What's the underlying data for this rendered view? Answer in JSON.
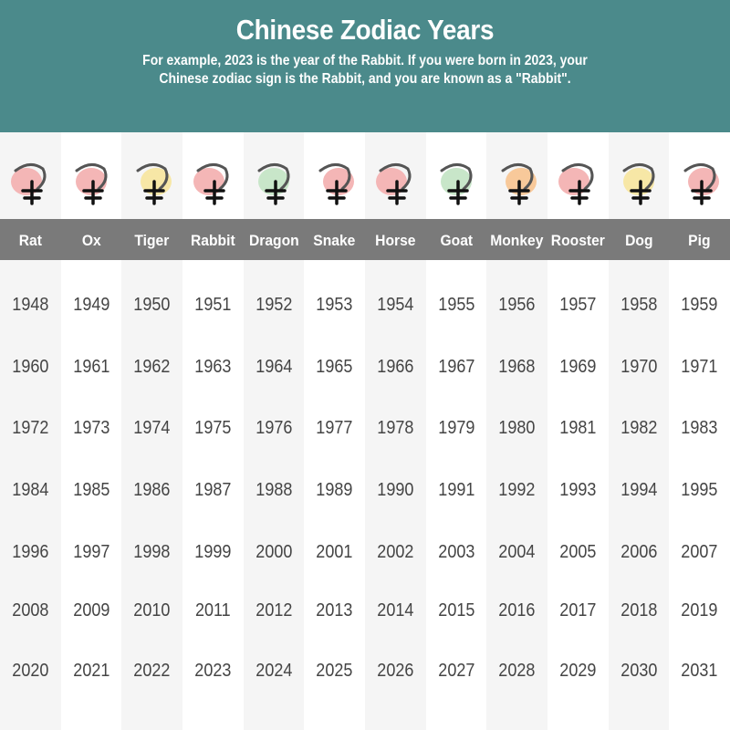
{
  "header": {
    "title": "Chinese Zodiac Years",
    "subtitle_line1": "For example, 2023 is the year of the Rabbit. If you were born in 2023, your",
    "subtitle_line2": "Chinese zodiac sign is the Rabbit, and you are known as a \"Rabbit\"."
  },
  "colors": {
    "banner": "#4b8a8b",
    "band": "#7a7a7a"
  },
  "signs": [
    {
      "name": "Rat",
      "icon": "rat-icon",
      "blob": "#f4b6b6",
      "years": [
        1948,
        1960,
        1972,
        1984,
        1996,
        2008,
        2020
      ]
    },
    {
      "name": "Ox",
      "icon": "ox-icon",
      "blob": "#f4b6b6",
      "years": [
        1949,
        1961,
        1973,
        1985,
        1997,
        2009,
        2021
      ]
    },
    {
      "name": "Tiger",
      "icon": "tiger-icon",
      "blob": "#f7e7a6",
      "years": [
        1950,
        1962,
        1974,
        1986,
        1998,
        2010,
        2022
      ]
    },
    {
      "name": "Rabbit",
      "icon": "rabbit-icon",
      "blob": "#f4b6b6",
      "years": [
        1951,
        1963,
        1975,
        1987,
        1999,
        2011,
        2023
      ]
    },
    {
      "name": "Dragon",
      "icon": "dragon-icon",
      "blob": "#c8e6c9",
      "years": [
        1952,
        1964,
        1976,
        1988,
        2000,
        2012,
        2024
      ]
    },
    {
      "name": "Snake",
      "icon": "snake-icon",
      "blob": "#f4b6b6",
      "years": [
        1953,
        1965,
        1977,
        1989,
        2001,
        2013,
        2025
      ]
    },
    {
      "name": "Horse",
      "icon": "horse-icon",
      "blob": "#f4b6b6",
      "years": [
        1954,
        1966,
        1978,
        1990,
        2002,
        2014,
        2026
      ]
    },
    {
      "name": "Goat",
      "icon": "goat-icon",
      "blob": "#c8e6c9",
      "years": [
        1955,
        1967,
        1979,
        1991,
        2003,
        2015,
        2027
      ]
    },
    {
      "name": "Monkey",
      "icon": "monkey-icon",
      "blob": "#f8c99a",
      "years": [
        1956,
        1968,
        1980,
        1992,
        2004,
        2016,
        2028
      ]
    },
    {
      "name": "Rooster",
      "icon": "rooster-icon",
      "blob": "#f4b6b6",
      "years": [
        1957,
        1969,
        1981,
        1993,
        2005,
        2017,
        2029
      ]
    },
    {
      "name": "Dog",
      "icon": "dog-icon",
      "blob": "#f7e7a6",
      "years": [
        1958,
        1970,
        1982,
        1994,
        2006,
        2018,
        2030
      ]
    },
    {
      "name": "Pig",
      "icon": "pig-icon",
      "blob": "#f4b6b6",
      "years": [
        1959,
        1971,
        1983,
        1995,
        2007,
        2019,
        2031
      ]
    }
  ]
}
